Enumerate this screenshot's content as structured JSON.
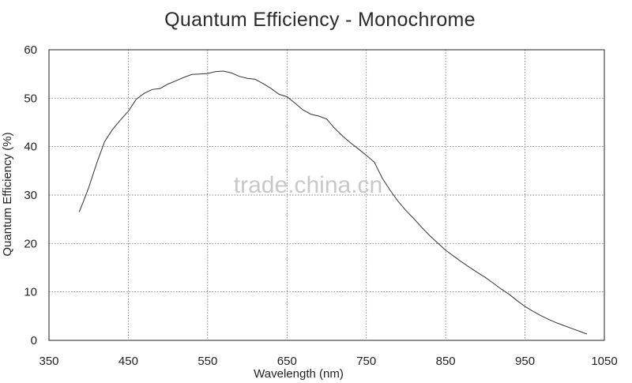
{
  "chart_data": {
    "type": "line",
    "title": "Quantum Efficiency - Monochrome",
    "xlabel": "Wavelength (nm)",
    "ylabel": "Quantum Efficiency (%)",
    "xlim": [
      350,
      1050
    ],
    "ylim": [
      0,
      60
    ],
    "xticks": [
      350,
      450,
      550,
      650,
      750,
      850,
      950,
      1050
    ],
    "yticks": [
      0,
      10,
      20,
      30,
      40,
      50,
      60
    ],
    "xtick_labels": [
      "350",
      "450",
      "550",
      "650",
      "750",
      "850",
      "950",
      "1050"
    ],
    "ytick_labels": [
      "0",
      "10",
      "20",
      "30",
      "40",
      "50",
      "60"
    ],
    "grid": true,
    "watermark": "trade.china.cn",
    "series": [
      {
        "x": [
          388,
          393,
          400,
          410,
          420,
          430,
          440,
          450,
          460,
          470,
          480,
          490,
          500,
          510,
          520,
          530,
          540,
          550,
          560,
          570,
          580,
          590,
          600,
          610,
          620,
          630,
          640,
          650,
          660,
          670,
          680,
          690,
          700,
          710,
          720,
          730,
          740,
          750,
          760,
          770,
          780,
          790,
          800,
          810,
          820,
          830,
          840,
          850,
          860,
          870,
          880,
          890,
          900,
          910,
          920,
          930,
          940,
          950,
          960,
          970,
          980,
          990,
          1000,
          1010,
          1020,
          1028
        ],
        "y": [
          26.5,
          28.5,
          31.5,
          36.5,
          41,
          43.5,
          45.5,
          47.3,
          49.8,
          51,
          51.8,
          52,
          52.9,
          53.6,
          54.3,
          54.9,
          55,
          55.1,
          55.5,
          55.6,
          55.2,
          54.5,
          54.1,
          53.9,
          53,
          52,
          50.8,
          50.3,
          49,
          47.6,
          46.7,
          46.3,
          45.7,
          43.8,
          42.2,
          40.8,
          39.5,
          38.2,
          36.8,
          33.5,
          31,
          28.7,
          26.8,
          25.1,
          23.3,
          21.6,
          20.1,
          18.6,
          17.4,
          16.2,
          15.1,
          14,
          13,
          11.8,
          10.6,
          9.5,
          8.2,
          7,
          6,
          5.1,
          4.3,
          3.6,
          3,
          2.4,
          1.8,
          1.3
        ]
      }
    ]
  }
}
